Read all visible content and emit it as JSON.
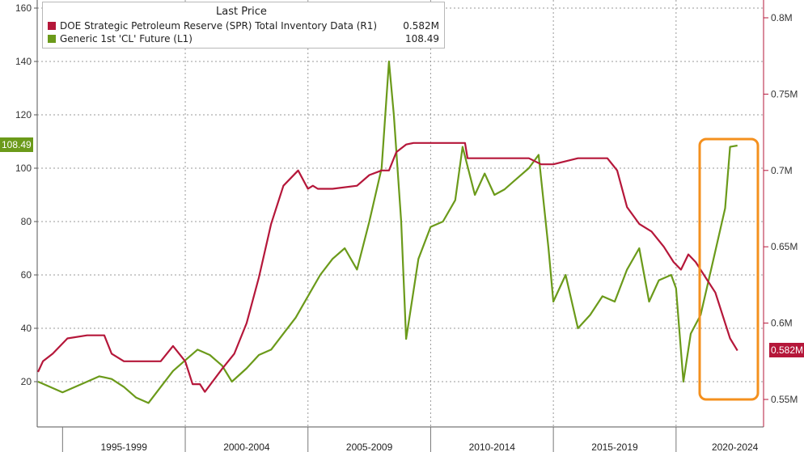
{
  "legend": {
    "header": "Last Price",
    "series": [
      {
        "label": "DOE Strategic Petroleum Reserve (SPR) Total Inventory Data  (R1)",
        "value": "0.582M",
        "color": "#b5173a"
      },
      {
        "label": "Generic 1st 'CL' Future  (L1)",
        "value": "108.49",
        "color": "#6b9a1a"
      }
    ]
  },
  "tags": {
    "left_last": "108.49",
    "right_last": "0.582M"
  },
  "highlight_color": "#f4901e",
  "chart_data": {
    "type": "line",
    "x_tick_labels": [
      "1995-1999",
      "2000-2004",
      "2005-2009",
      "2010-2014",
      "2015-2019",
      "2020-2024"
    ],
    "left_axis": {
      "ticks": [
        20,
        40,
        60,
        80,
        100,
        120,
        140,
        160
      ],
      "range": [
        10,
        165
      ]
    },
    "right_axis": {
      "ticks": [
        "0.55M",
        "0.6M",
        "0.65M",
        "0.7M",
        "0.75M",
        "0.8M"
      ],
      "tick_values": [
        0.55,
        0.6,
        0.65,
        0.7,
        0.75,
        0.8
      ],
      "range": [
        0.535,
        0.82
      ]
    },
    "grid": true,
    "series": [
      {
        "name": "Generic 1st 'CL' Future  (L1)",
        "axis": "left",
        "color": "#6b9a1a",
        "x": [
          1994.0,
          1994.5,
          1995.0,
          1995.5,
          1996.0,
          1996.5,
          1997.0,
          1997.5,
          1998.0,
          1998.5,
          1999.0,
          1999.5,
          2000.0,
          2000.5,
          2001.0,
          2001.5,
          2001.9,
          2002.5,
          2003.0,
          2003.5,
          2004.0,
          2004.5,
          2005.0,
          2005.5,
          2006.0,
          2006.5,
          2007.0,
          2007.5,
          2008.0,
          2008.3,
          2008.5,
          2008.8,
          2009.0,
          2009.2,
          2009.5,
          2010.0,
          2010.5,
          2011.0,
          2011.3,
          2011.8,
          2012.2,
          2012.6,
          2013.0,
          2013.5,
          2014.0,
          2014.4,
          2014.8,
          2015.0,
          2015.5,
          2016.0,
          2016.5,
          2017.0,
          2017.5,
          2018.0,
          2018.5,
          2018.9,
          2019.3,
          2019.8,
          2020.0,
          2020.3,
          2020.6,
          2021.0,
          2021.5,
          2022.0,
          2022.2,
          2022.5
        ],
        "y": [
          20,
          18,
          16,
          18,
          20,
          22,
          21,
          18,
          14,
          12,
          18,
          24,
          28,
          32,
          30,
          26,
          20,
          25,
          30,
          32,
          38,
          44,
          52,
          60,
          66,
          70,
          62,
          80,
          100,
          140,
          120,
          80,
          36,
          48,
          66,
          78,
          80,
          88,
          108,
          90,
          98,
          90,
          92,
          96,
          100,
          105,
          70,
          50,
          60,
          40,
          45,
          52,
          50,
          62,
          70,
          50,
          58,
          60,
          55,
          20,
          38,
          45,
          65,
          85,
          108,
          108.49
        ]
      },
      {
        "name": "DOE Strategic Petroleum Reserve (SPR) Total Inventory Data  (R1)",
        "axis": "right",
        "color": "#b5173a",
        "x": [
          1994.0,
          1994.2,
          1994.6,
          1995.2,
          1996.0,
          1996.7,
          1997.0,
          1997.5,
          1998.0,
          1998.5,
          1999.0,
          1999.5,
          2000.0,
          2000.3,
          2000.6,
          2000.8,
          2001.5,
          2002.0,
          2002.5,
          2003.0,
          2003.5,
          2004.0,
          2004.6,
          2005.0,
          2005.2,
          2005.4,
          2006.0,
          2007.0,
          2007.5,
          2008.0,
          2008.3,
          2008.6,
          2009.0,
          2009.3,
          2010.0,
          2011.4,
          2011.5,
          2013.0,
          2014.0,
          2014.5,
          2015.0,
          2016.0,
          2017.2,
          2017.6,
          2018.0,
          2018.5,
          2019.0,
          2019.5,
          2019.9,
          2020.2,
          2020.5,
          2020.8,
          2021.2,
          2021.6,
          2022.0,
          2022.2,
          2022.5
        ],
        "y": [
          0.568,
          0.575,
          0.58,
          0.59,
          0.592,
          0.592,
          0.58,
          0.575,
          0.575,
          0.575,
          0.575,
          0.585,
          0.575,
          0.56,
          0.56,
          0.555,
          0.57,
          0.58,
          0.6,
          0.63,
          0.665,
          0.69,
          0.7,
          0.688,
          0.69,
          0.688,
          0.688,
          0.69,
          0.697,
          0.7,
          0.7,
          0.712,
          0.717,
          0.718,
          0.718,
          0.718,
          0.708,
          0.708,
          0.708,
          0.704,
          0.704,
          0.708,
          0.708,
          0.7,
          0.676,
          0.665,
          0.66,
          0.65,
          0.64,
          0.635,
          0.645,
          0.64,
          0.63,
          0.62,
          0.6,
          0.59,
          0.582
        ]
      }
    ]
  }
}
